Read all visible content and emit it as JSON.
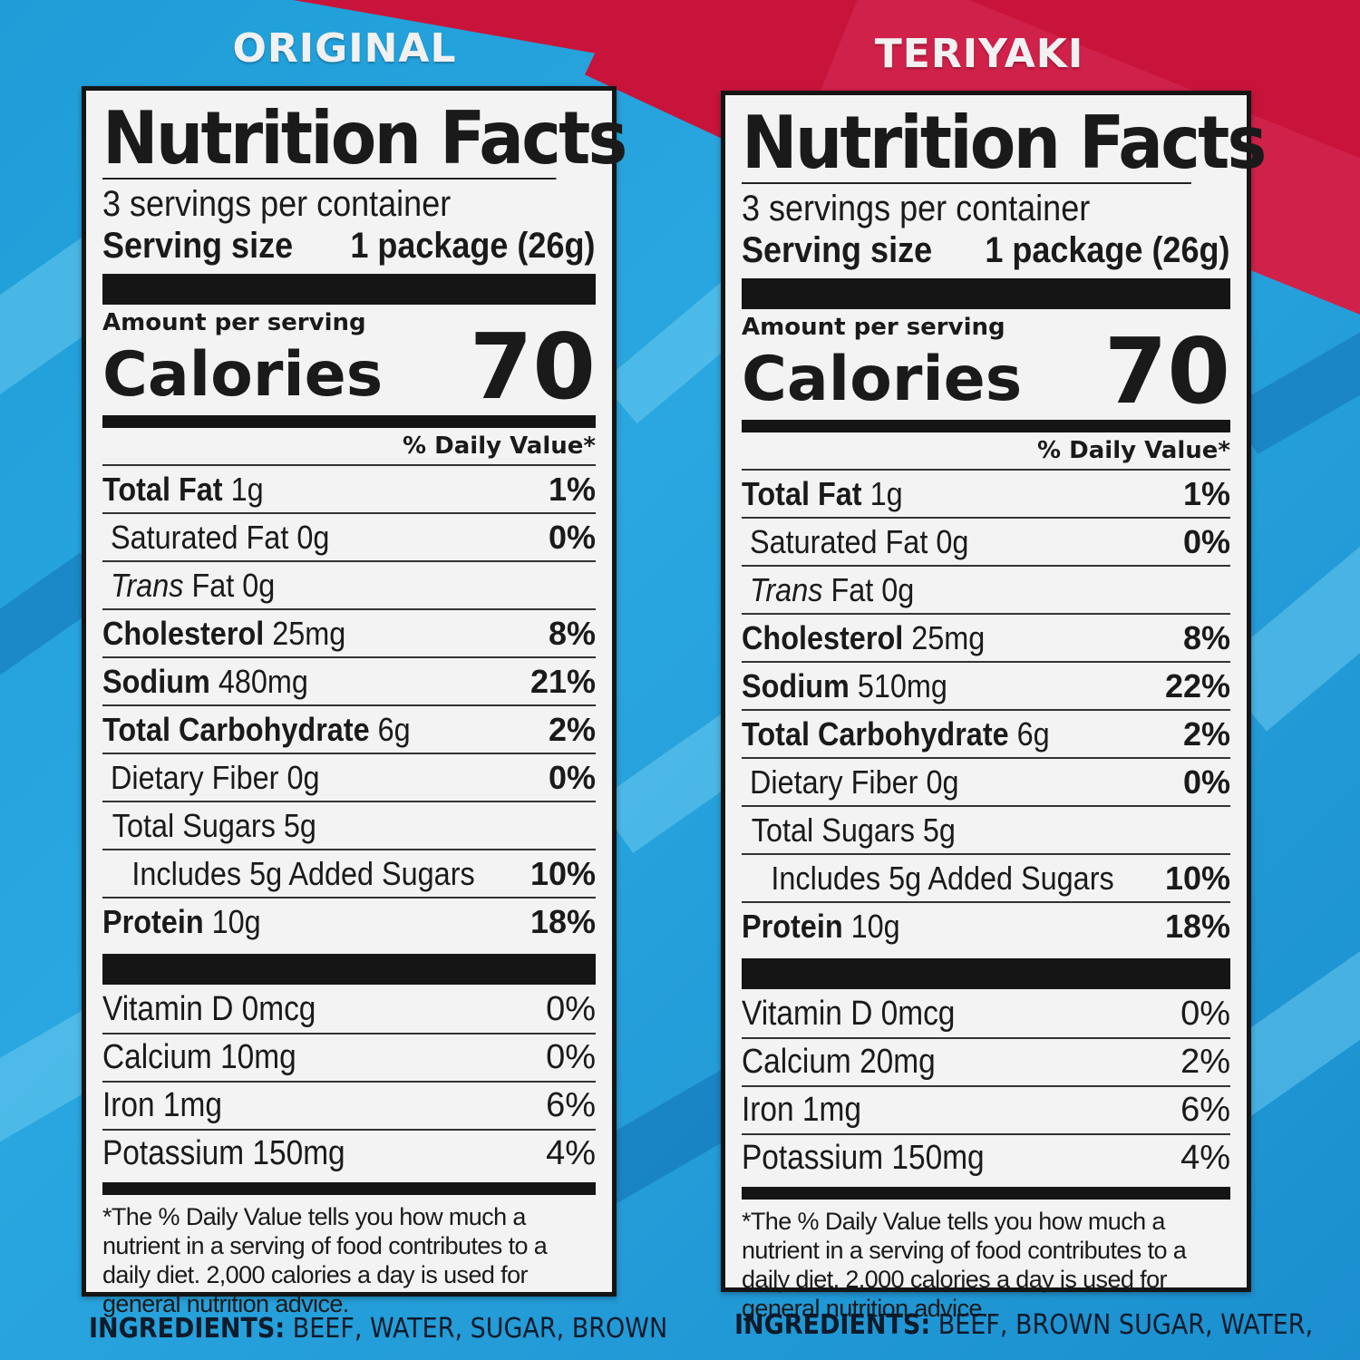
{
  "flavors": [
    {
      "name": "ORIGINAL",
      "title": "Nutrition Facts",
      "servings_per_container": "3 servings per container",
      "serving_size_label": "Serving size",
      "serving_size_value": "1 package (26g)",
      "amount_per_serving": "Amount per serving",
      "calories_label": "Calories",
      "calories_value": "70",
      "daily_value_header": "% Daily Value*",
      "nutrients": [
        {
          "name": "Total Fat",
          "amount": "1g",
          "dv": "1%"
        },
        {
          "name": "Saturated Fat",
          "amount": "0g",
          "dv": "0%"
        },
        {
          "name": "Trans",
          "name_suffix": "Fat",
          "amount": "0g",
          "dv": ""
        },
        {
          "name": "Cholesterol",
          "amount": "25mg",
          "dv": "8%"
        },
        {
          "name": "Sodium",
          "amount": "480mg",
          "dv": "21%"
        },
        {
          "name": "Total Carbohydrate",
          "amount": "6g",
          "dv": "2%"
        },
        {
          "name": "Dietary Fiber",
          "amount": "0g",
          "dv": "0%"
        },
        {
          "name": "Total Sugars",
          "amount": "5g",
          "dv": ""
        },
        {
          "name": "Includes 5g Added Sugars",
          "amount": "",
          "dv": "10%"
        },
        {
          "name": "Protein",
          "amount": "10g",
          "dv": "18%"
        }
      ],
      "vitamins": [
        {
          "name": "Vitamin D 0mcg",
          "dv": "0%"
        },
        {
          "name": "Calcium 10mg",
          "dv": "0%"
        },
        {
          "name": "Iron 1mg",
          "dv": "6%"
        },
        {
          "name": "Potassium 150mg",
          "dv": "4%"
        }
      ],
      "footnote": "*The % Daily Value tells you how much a nutrient in a serving of food contributes to a daily diet. 2,000 calories a day is used for general nutrition advice.",
      "ingredients_label": "INGREDIENTS:",
      "ingredients_text": "BEEF, WATER, SUGAR, BROWN"
    },
    {
      "name": "TERIYAKI",
      "title": "Nutrition Facts",
      "servings_per_container": "3 servings per container",
      "serving_size_label": "Serving size",
      "serving_size_value": "1 package (26g)",
      "amount_per_serving": "Amount per serving",
      "calories_label": "Calories",
      "calories_value": "70",
      "daily_value_header": "% Daily Value*",
      "nutrients": [
        {
          "name": "Total Fat",
          "amount": "1g",
          "dv": "1%"
        },
        {
          "name": "Saturated Fat",
          "amount": "0g",
          "dv": "0%"
        },
        {
          "name": "Trans",
          "name_suffix": "Fat",
          "amount": "0g",
          "dv": ""
        },
        {
          "name": "Cholesterol",
          "amount": "25mg",
          "dv": "8%"
        },
        {
          "name": "Sodium",
          "amount": "510mg",
          "dv": "22%"
        },
        {
          "name": "Total Carbohydrate",
          "amount": "6g",
          "dv": "2%"
        },
        {
          "name": "Dietary Fiber",
          "amount": "0g",
          "dv": "0%"
        },
        {
          "name": "Total Sugars",
          "amount": "5g",
          "dv": ""
        },
        {
          "name": "Includes 5g Added Sugars",
          "amount": "",
          "dv": "10%"
        },
        {
          "name": "Protein",
          "amount": "10g",
          "dv": "18%"
        }
      ],
      "vitamins": [
        {
          "name": "Vitamin D 0mcg",
          "dv": "0%"
        },
        {
          "name": "Calcium 20mg",
          "dv": "2%"
        },
        {
          "name": "Iron 1mg",
          "dv": "6%"
        },
        {
          "name": "Potassium 150mg",
          "dv": "4%"
        }
      ],
      "footnote": "*The % Daily Value tells you how much a nutrient in a serving of food contributes to a daily diet. 2,000 calories a day is used for general nutrition advice.",
      "ingredients_label": "INGREDIENTS:",
      "ingredients_text": "BEEF, BROWN SUGAR, WATER,"
    }
  ],
  "colors": {
    "background_blue": "#1f9dd8",
    "accent_red": "#c8143a",
    "label_background": "#f3f3f3",
    "ink": "#151515"
  }
}
